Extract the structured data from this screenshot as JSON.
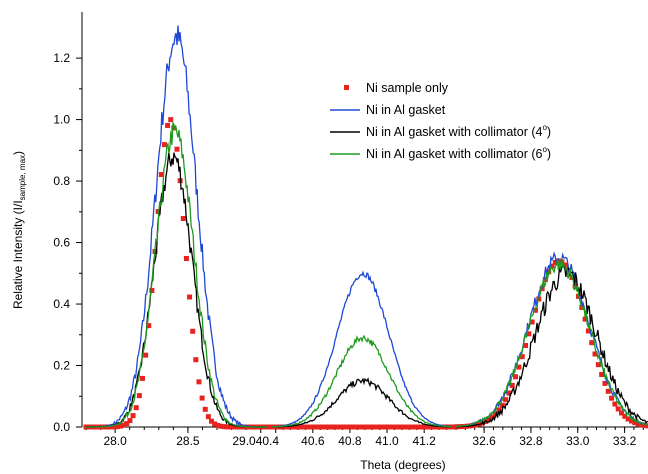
{
  "chart_data": {
    "type": "line",
    "xlabel": "Theta (degrees)",
    "ylabel": {
      "main": "Relative Intensity (I/I",
      "subscript": "sample, max",
      "close": ")"
    },
    "ylim": [
      0,
      1.35
    ],
    "y_ticks": [
      "0.0",
      "0.2",
      "0.4",
      "0.6",
      "0.8",
      "1.0",
      "1.2"
    ],
    "y_tick_values": [
      0,
      0.2,
      0.4,
      0.6,
      0.8,
      1.0,
      1.2
    ],
    "grid": false,
    "legend_position": "upper-middle",
    "panels": [
      {
        "xlim": [
          27.8,
          29.05
        ],
        "x_tick_values": [
          28.0,
          28.5,
          29.0
        ],
        "x_tick_labels": [
          "28.0",
          "28.5",
          ""
        ]
      },
      {
        "xlim": [
          40.38,
          41.35
        ],
        "x_tick_values": [
          40.4,
          40.6,
          40.8,
          41.0,
          41.2
        ],
        "x_tick_labels": [
          "29.040.4",
          "40.6",
          "40.8",
          "41.0",
          "41.2"
        ]
      },
      {
        "xlim": [
          32.48,
          33.3
        ],
        "x_tick_values": [
          32.6,
          32.8,
          33.0,
          33.2
        ],
        "x_tick_labels": [
          "32.6",
          "32.8",
          "33.0",
          "33.2"
        ]
      }
    ],
    "series": [
      {
        "name": "Ni sample only",
        "style": "markers",
        "color": "#e8231f",
        "peaks": [
          {
            "center": 28.38,
            "height": 1.0,
            "width": 0.1,
            "noise": 0.0
          },
          {
            "center": 40.85,
            "height": 0.0,
            "width": 0.1,
            "noise": 0.0
          },
          {
            "center": 32.92,
            "height": 0.54,
            "width": 0.12,
            "noise": 0.0
          }
        ]
      },
      {
        "name": "Ni in Al gasket",
        "style": "line",
        "color": "#1f48d6",
        "peaks": [
          {
            "center": 28.42,
            "height": 1.27,
            "width": 0.14,
            "noise": 0.05
          },
          {
            "center": 40.87,
            "height": 0.5,
            "width": 0.14,
            "noise": 0.01
          },
          {
            "center": 32.92,
            "height": 0.55,
            "width": 0.13,
            "noise": 0.025
          }
        ]
      },
      {
        "name": "Ni in Al gasket with collimator (4°)",
        "style": "line",
        "color": "#000000",
        "peaks": [
          {
            "center": 28.4,
            "height": 0.88,
            "width": 0.13,
            "noise": 0.04
          },
          {
            "center": 40.87,
            "height": 0.15,
            "width": 0.14,
            "noise": 0.01
          },
          {
            "center": 32.95,
            "height": 0.5,
            "width": 0.13,
            "noise": 0.035
          }
        ]
      },
      {
        "name": "Ni in Al gasket with collimator (6°)",
        "style": "line",
        "color": "#1e9a1e",
        "peaks": [
          {
            "center": 28.41,
            "height": 0.96,
            "width": 0.13,
            "noise": 0.04
          },
          {
            "center": 40.87,
            "height": 0.29,
            "width": 0.14,
            "noise": 0.01
          },
          {
            "center": 32.92,
            "height": 0.53,
            "width": 0.13,
            "noise": 0.025
          }
        ]
      }
    ],
    "legend": [
      {
        "label": "Ni sample only",
        "style": "marker",
        "color": "#e8231f"
      },
      {
        "label": "Ni in Al gasket",
        "style": "line",
        "color": "#1f48d6"
      },
      {
        "label": "Ni in Al gasket with collimator (4",
        "superscript": "o",
        "close": ")",
        "style": "line",
        "color": "#000000"
      },
      {
        "label": "Ni in Al gasket with collimator (6",
        "superscript": "o",
        "close": ")",
        "style": "line",
        "color": "#1e9a1e"
      }
    ]
  }
}
